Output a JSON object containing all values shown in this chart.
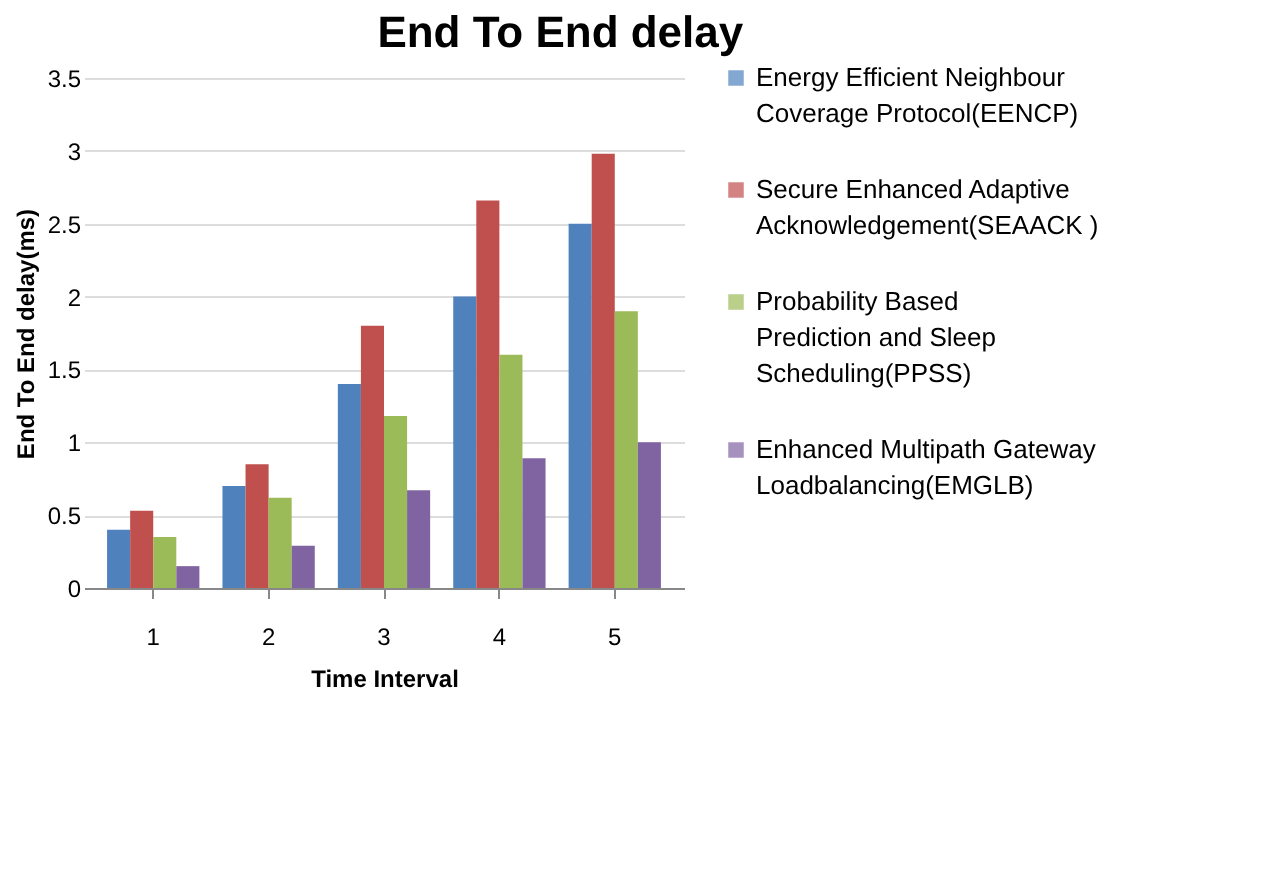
{
  "chart_data": {
    "type": "bar",
    "title": "End To End delay",
    "xlabel": "Time Interval",
    "ylabel": "End To End delay(ms)",
    "categories": [
      "1",
      "2",
      "3",
      "4",
      "5"
    ],
    "series": [
      {
        "name": "Energy Efficient Neighbour Coverage Protocol(EENCP)",
        "color": "#4f81bd",
        "values": [
          0.4,
          0.7,
          1.4,
          2.0,
          2.5
        ]
      },
      {
        "name": "Secure Enhanced Adaptive Acknowledgement(SEAACK )",
        "color": "#c0504d",
        "values": [
          0.53,
          0.85,
          1.8,
          2.66,
          2.98
        ]
      },
      {
        "name": "Probability Based Prediction and Sleep Scheduling(PPSS)",
        "color": "#9bbb59",
        "values": [
          0.35,
          0.62,
          1.18,
          1.6,
          1.9
        ]
      },
      {
        "name": "Enhanced Multipath Gateway Loadbalancing(EMGLB)",
        "color": "#8064a2",
        "values": [
          0.15,
          0.29,
          0.67,
          0.89,
          1.0
        ]
      }
    ],
    "ylim": [
      0,
      3.5
    ],
    "yticks": [
      0,
      0.5,
      1,
      1.5,
      2,
      2.5,
      3,
      3.5
    ],
    "grid": "y",
    "legend": "right"
  }
}
